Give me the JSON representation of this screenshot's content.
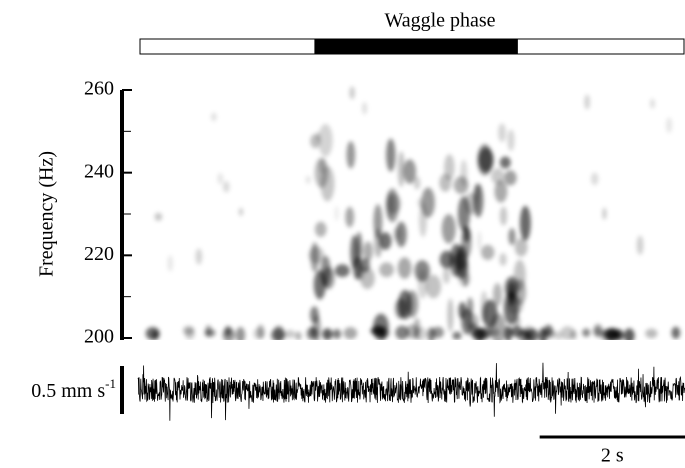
{
  "chart_data": {
    "type": "spectrogram",
    "phase_label": "Waggle phase",
    "xlim": [
      0,
      7.5
    ],
    "waggle_phase": [
      2.4,
      5.2
    ],
    "y_label": "Frequency (Hz)",
    "ylim": [
      200,
      260
    ],
    "yticks": [
      200,
      220,
      240,
      260
    ],
    "minor_yticks": [
      210,
      230,
      250
    ],
    "amplitude_scale": {
      "text": "0.5 mm s",
      "sup": "-1"
    },
    "time_scale": {
      "value": 2,
      "label": "2 s"
    }
  }
}
